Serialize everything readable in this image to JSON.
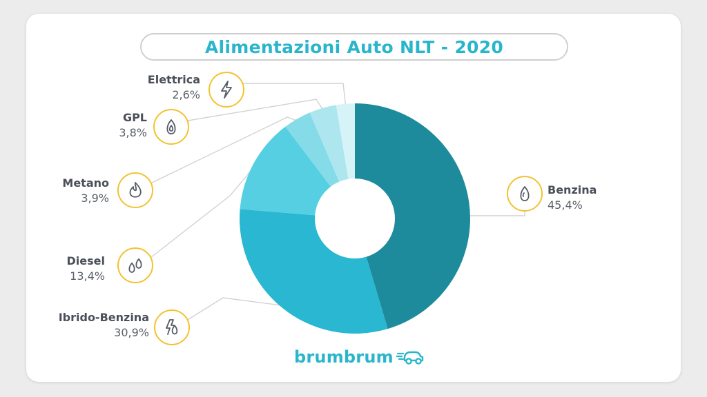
{
  "chart_data": {
    "type": "pie",
    "title": "Alimentazioni Auto NLT - 2020",
    "donut": true,
    "slices": [
      {
        "name": "Benzina",
        "value": 45.4,
        "label": "45,4%",
        "color": "#1d8b9c",
        "icon": "drop-icon"
      },
      {
        "name": "Ibrido-Benzina",
        "value": 30.9,
        "label": "30,9%",
        "color": "#29b7d1",
        "icon": "hybrid-bolt-drop-icon"
      },
      {
        "name": "Diesel",
        "value": 13.4,
        "label": "13,4%",
        "color": "#56cfe2",
        "icon": "double-drop-icon"
      },
      {
        "name": "Metano",
        "value": 3.9,
        "label": "3,9%",
        "color": "#86dbe9",
        "icon": "flame-icon"
      },
      {
        "name": "GPL",
        "value": 3.8,
        "label": "3,8%",
        "color": "#aee6ef",
        "icon": "gas-drop-icon"
      },
      {
        "name": "Elettrica",
        "value": 2.6,
        "label": "2,6%",
        "color": "#d6f4f8",
        "icon": "bolt-icon"
      }
    ]
  },
  "brand": {
    "name": "brumbrum",
    "icon": "car-icon",
    "color": "#29b5cc"
  },
  "colors": {
    "accent": "#29b5cc",
    "icon_ring": "#f2c230"
  }
}
